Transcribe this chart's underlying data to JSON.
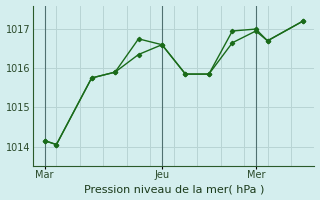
{
  "bg_color": "#d4eeee",
  "grid_color": "#b8d4d4",
  "line_color": "#1a6b1a",
  "vline_color": "#507070",
  "spine_color": "#2a5a2a",
  "xlabel": "Pression niveau de la mer( hPa )",
  "xtick_labels": [
    "Mar",
    "Jeu",
    "Mer"
  ],
  "xtick_positions": [
    0.5,
    5.5,
    9.5
  ],
  "vline_positions": [
    0.5,
    5.5,
    9.5
  ],
  "ylim": [
    1013.5,
    1017.6
  ],
  "yticks": [
    1014,
    1015,
    1016,
    1017
  ],
  "xlim": [
    0,
    12
  ],
  "series1_x": [
    0.5,
    1.0,
    2.5,
    3.5,
    4.5,
    5.5,
    6.5,
    7.5,
    8.5,
    9.5,
    10.0,
    11.5
  ],
  "series1_y": [
    1014.15,
    1014.05,
    1015.75,
    1015.9,
    1016.75,
    1016.6,
    1015.85,
    1015.85,
    1016.95,
    1017.0,
    1016.7,
    1017.2
  ],
  "series2_x": [
    0.5,
    1.0,
    2.5,
    3.5,
    4.5,
    5.5,
    6.5,
    7.5,
    8.5,
    9.5,
    10.0,
    11.5
  ],
  "series2_y": [
    1014.15,
    1014.05,
    1015.75,
    1015.9,
    1016.35,
    1016.6,
    1015.85,
    1015.85,
    1016.65,
    1016.95,
    1016.7,
    1017.2
  ],
  "xlabel_fontsize": 8,
  "tick_fontsize": 7
}
